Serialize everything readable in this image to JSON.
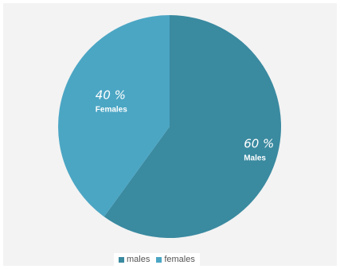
{
  "chart_data": {
    "type": "pie",
    "categories": [
      "males",
      "females"
    ],
    "values": [
      60,
      40
    ],
    "colors": [
      "#3a8aa0",
      "#4ba6c4"
    ],
    "slices": [
      {
        "name": "males",
        "value": 60,
        "pct_label": "60 %",
        "label": "Males",
        "color": "#3a8aa0"
      },
      {
        "name": "females",
        "value": 40,
        "pct_label": "40 %",
        "label": "Females",
        "color": "#4ba6c4"
      }
    ],
    "legend": {
      "placement": "bottom",
      "entries": [
        "males",
        "females"
      ]
    }
  }
}
